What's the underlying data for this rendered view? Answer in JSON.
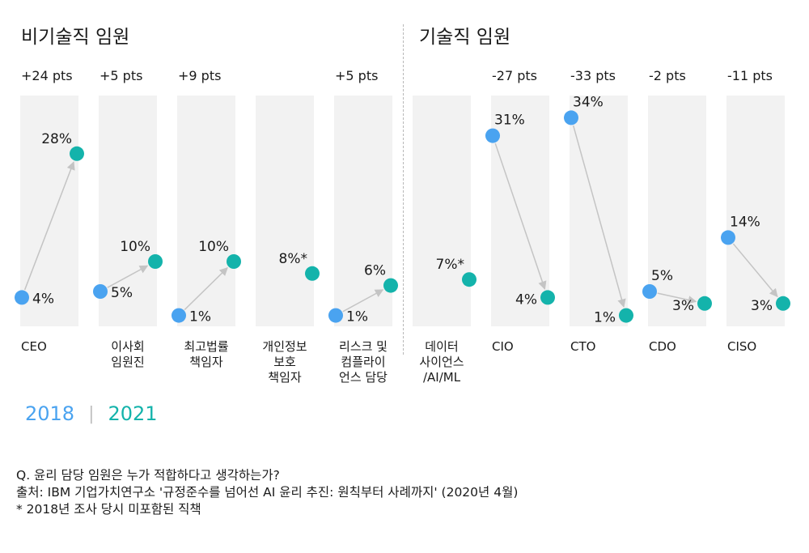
{
  "groups": {
    "non_tech": "비기술직 임원",
    "tech": "기술직 임원"
  },
  "legend": {
    "year_2018": "2018",
    "separator": "|",
    "year_2021": "2021"
  },
  "colors": {
    "y2018": "#4aa3f0",
    "y2021": "#14b3ab",
    "panel": "#f2f2f2",
    "arrow": "#c4c4c4"
  },
  "chart_data": {
    "type": "slope",
    "series_names": [
      "2018",
      "2021"
    ],
    "categories": [
      {
        "label_lines": [
          "CEO"
        ],
        "change": "+24 pts",
        "v2018": 4,
        "v2018_label": "4%",
        "v2021": 28,
        "v2021_label": "28%",
        "group": "non_tech"
      },
      {
        "label_lines": [
          "이사회",
          "임원진"
        ],
        "change": "+5 pts",
        "v2018": 5,
        "v2018_label": "5%",
        "v2021": 10,
        "v2021_label": "10%",
        "group": "non_tech"
      },
      {
        "label_lines": [
          "최고법률",
          "책임자"
        ],
        "change": "+9 pts",
        "v2018": 1,
        "v2018_label": "1%",
        "v2021": 10,
        "v2021_label": "10%",
        "group": "non_tech"
      },
      {
        "label_lines": [
          "개인정보",
          "보호",
          "책임자"
        ],
        "change": "",
        "v2018": null,
        "v2018_label": "",
        "v2021": 8,
        "v2021_label": "8%*",
        "group": "non_tech"
      },
      {
        "label_lines": [
          "리스크 및",
          "컴플라이",
          "언스 담당"
        ],
        "change": "+5 pts",
        "v2018": 1,
        "v2018_label": "1%",
        "v2021": 6,
        "v2021_label": "6%",
        "group": "non_tech"
      },
      {
        "label_lines": [
          "데이터",
          "사이언스",
          "/AI/ML"
        ],
        "change": "",
        "v2018": null,
        "v2018_label": "",
        "v2021": 7,
        "v2021_label": "7%*",
        "group": "tech"
      },
      {
        "label_lines": [
          "CIO"
        ],
        "change": "-27 pts",
        "v2018": 31,
        "v2018_label": "31%",
        "v2021": 4,
        "v2021_label": "4%",
        "group": "tech"
      },
      {
        "label_lines": [
          "CTO"
        ],
        "change": "-33 pts",
        "v2018": 34,
        "v2018_label": "34%",
        "v2021": 1,
        "v2021_label": "1%",
        "group": "tech"
      },
      {
        "label_lines": [
          "CDO"
        ],
        "change": "-2 pts",
        "v2018": 5,
        "v2018_label": "5%",
        "v2021": 3,
        "v2021_label": "3%",
        "group": "tech"
      },
      {
        "label_lines": [
          "CISO"
        ],
        "change": "-11 pts",
        "v2018": 14,
        "v2018_label": "14%",
        "v2021": 3,
        "v2021_label": "3%",
        "group": "tech"
      }
    ],
    "ylim": [
      0,
      40
    ]
  },
  "notes": [
    "Q. 윤리 담당 임원은 누가 적합하다고 생각하는가?",
    "출처: IBM 기업가치연구소 '규정준수를 넘어선 AI 윤리 추진: 원칙부터 사례까지' (2020년 4월)",
    "* 2018년 조사 당시 미포함된 직책"
  ]
}
